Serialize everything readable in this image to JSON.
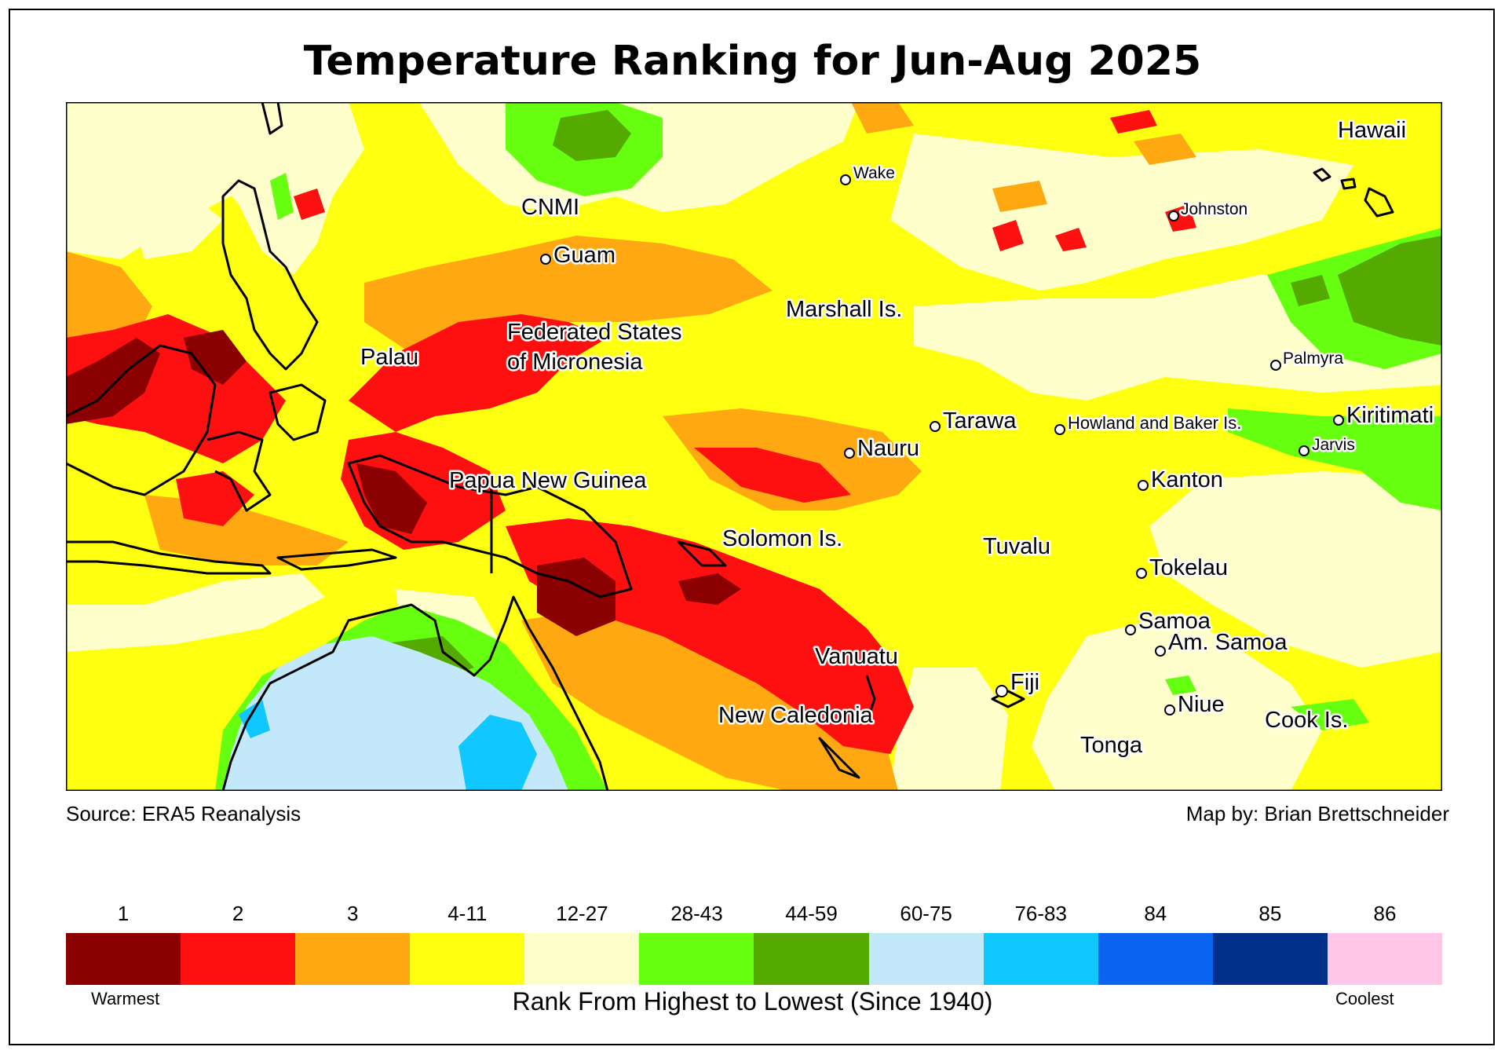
{
  "title": "Temperature Ranking for Jun-Aug 2025",
  "source": "Source: ERA5 Reanalysis",
  "credit": "Map by: Brian Brettschneider",
  "legend": {
    "title": "Rank From Highest to Lowest (Since 1940)",
    "warm_label": "Warmest",
    "cool_label": "Coolest",
    "classes": [
      {
        "label": "1",
        "color": "#8b0000"
      },
      {
        "label": "2",
        "color": "#ff1010"
      },
      {
        "label": "3",
        "color": "#ffa812"
      },
      {
        "label": "4-11",
        "color": "#ffff10"
      },
      {
        "label": "12-27",
        "color": "#ffffcc"
      },
      {
        "label": "28-43",
        "color": "#66ff10"
      },
      {
        "label": "44-59",
        "color": "#55aa00"
      },
      {
        "label": "60-75",
        "color": "#c2e8fa"
      },
      {
        "label": "76-83",
        "color": "#10c8ff"
      },
      {
        "label": "84",
        "color": "#0a64f0"
      },
      {
        "label": "85",
        "color": "#00308a"
      },
      {
        "label": "86",
        "color": "#ffc6e8"
      }
    ]
  },
  "places": {
    "hawaii": "Hawaii",
    "wake": "Wake",
    "cnmi": "CNMI",
    "johnston": "Johnston",
    "guam": "Guam",
    "marshall": "Marshall Is.",
    "palau": "Palau",
    "fsm_1": "Federated States",
    "fsm_2": "of Micronesia",
    "palmyra": "Palmyra",
    "tarawa": "Tarawa",
    "howland": "Howland and Baker Is.",
    "kiritimati": "Kiritimati",
    "nauru": "Nauru",
    "jarvis": "Jarvis",
    "png": "Papua New Guinea",
    "kanton": "Kanton",
    "solomon": "Solomon Is.",
    "tuvalu": "Tuvalu",
    "tokelau": "Tokelau",
    "samoa": "Samoa",
    "am_samoa": "Am. Samoa",
    "vanuatu": "Vanuatu",
    "fiji": "Fiji",
    "niue": "Niue",
    "new_caledonia": "New Caledonia",
    "cook": "Cook Is.",
    "tonga": "Tonga"
  }
}
